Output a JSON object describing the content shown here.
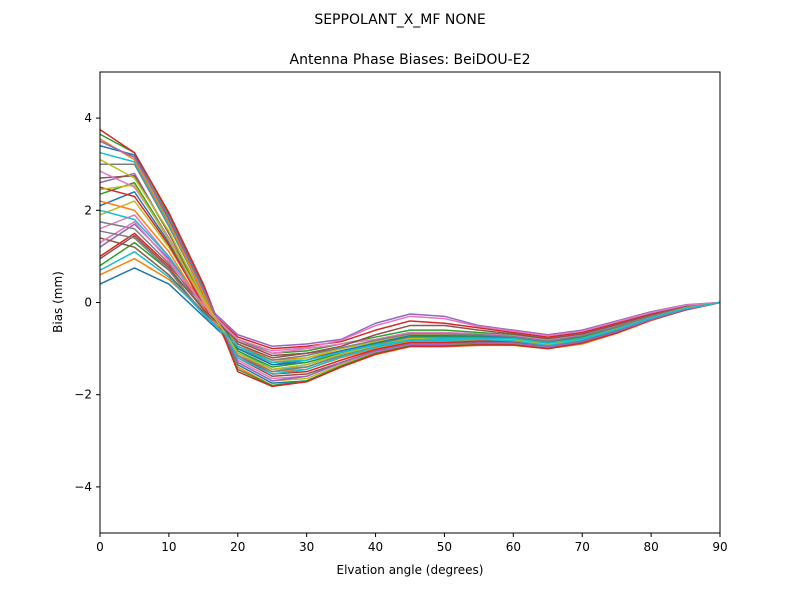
{
  "figure": {
    "suptitle": "SEPPOLANT_X_MF  NONE"
  },
  "chart_data": {
    "type": "line",
    "title": "Antenna Phase Biases: BeiDOU-E2",
    "xlabel": "Elvation angle (degrees)",
    "ylabel": "Bias (mm)",
    "xlim": [
      0,
      90
    ],
    "ylim": [
      -5,
      5
    ],
    "xticks": [
      0,
      10,
      20,
      30,
      40,
      50,
      60,
      70,
      80,
      90
    ],
    "yticks": [
      -4,
      -2,
      0,
      2,
      4
    ],
    "ytick_labels": [
      "−4",
      "−2",
      "0",
      "2",
      "4"
    ],
    "grid": false,
    "legend": "none",
    "x": [
      0,
      5,
      10,
      15,
      20,
      25,
      30,
      35,
      40,
      45,
      50,
      55,
      60,
      65,
      70,
      75,
      80,
      85,
      90
    ],
    "series_colors": [
      "#1f77b4",
      "#ff7f0e",
      "#2ca02c",
      "#d62728",
      "#9467bd",
      "#8c564b",
      "#e377c2",
      "#7f7f7f",
      "#bcbd22",
      "#17becf"
    ],
    "series": [
      {
        "values": [
          0.4,
          0.75,
          0.4,
          -0.3,
          -1.0,
          -1.35,
          -1.3,
          -1.1,
          -0.95,
          -0.85,
          -0.8,
          -0.8,
          -0.8,
          -0.9,
          -0.8,
          -0.6,
          -0.35,
          -0.15,
          0.0
        ]
      },
      {
        "values": [
          0.6,
          0.95,
          0.5,
          -0.2,
          -0.9,
          -1.25,
          -1.2,
          -1.05,
          -0.9,
          -0.8,
          -0.75,
          -0.75,
          -0.75,
          -0.85,
          -0.75,
          -0.55,
          -0.3,
          -0.1,
          0.0
        ]
      },
      {
        "values": [
          0.8,
          1.3,
          0.7,
          -0.1,
          -0.8,
          -1.1,
          -1.05,
          -0.9,
          -0.75,
          -0.6,
          -0.6,
          -0.65,
          -0.7,
          -0.8,
          -0.7,
          -0.5,
          -0.28,
          -0.1,
          0.0
        ]
      },
      {
        "values": [
          1.0,
          1.5,
          0.8,
          -0.05,
          -0.75,
          -1.0,
          -0.95,
          -0.85,
          -0.6,
          -0.4,
          -0.45,
          -0.55,
          -0.65,
          -0.75,
          -0.65,
          -0.45,
          -0.25,
          -0.08,
          0.0
        ]
      },
      {
        "values": [
          1.2,
          1.7,
          0.95,
          0.0,
          -0.7,
          -0.95,
          -0.9,
          -0.8,
          -0.45,
          -0.25,
          -0.3,
          -0.5,
          -0.6,
          -0.7,
          -0.6,
          -0.4,
          -0.2,
          -0.05,
          0.0
        ]
      },
      {
        "values": [
          1.4,
          1.2,
          0.6,
          -0.2,
          -0.9,
          -1.2,
          -1.1,
          -1.0,
          -0.85,
          -0.7,
          -0.7,
          -0.7,
          -0.75,
          -0.85,
          -0.72,
          -0.52,
          -0.3,
          -0.12,
          0.0
        ]
      },
      {
        "values": [
          1.6,
          1.9,
          1.0,
          -0.05,
          -0.85,
          -1.1,
          -1.0,
          -0.9,
          -0.8,
          -0.65,
          -0.65,
          -0.68,
          -0.72,
          -0.82,
          -0.7,
          -0.5,
          -0.28,
          -0.1,
          0.0
        ]
      },
      {
        "values": [
          1.75,
          1.6,
          0.85,
          -0.15,
          -1.0,
          -1.3,
          -1.25,
          -1.05,
          -0.9,
          -0.78,
          -0.78,
          -0.78,
          -0.78,
          -0.88,
          -0.76,
          -0.55,
          -0.32,
          -0.12,
          0.0
        ]
      },
      {
        "values": [
          1.9,
          2.2,
          1.2,
          0.0,
          -0.95,
          -1.3,
          -1.2,
          -1.0,
          -0.85,
          -0.7,
          -0.7,
          -0.72,
          -0.75,
          -0.85,
          -0.74,
          -0.54,
          -0.3,
          -0.1,
          0.0
        ]
      },
      {
        "values": [
          2.0,
          1.8,
          1.0,
          -0.1,
          -1.05,
          -1.45,
          -1.4,
          -1.15,
          -0.95,
          -0.82,
          -0.82,
          -0.8,
          -0.8,
          -0.9,
          -0.78,
          -0.57,
          -0.33,
          -0.13,
          0.0
        ]
      },
      {
        "values": [
          2.1,
          2.4,
          1.3,
          0.05,
          -1.0,
          -1.35,
          -1.25,
          -1.05,
          -0.88,
          -0.72,
          -0.72,
          -0.73,
          -0.76,
          -0.86,
          -0.75,
          -0.55,
          -0.31,
          -0.11,
          0.0
        ]
      },
      {
        "values": [
          2.2,
          2.0,
          1.1,
          -0.1,
          -1.1,
          -1.5,
          -1.45,
          -1.2,
          -1.0,
          -0.85,
          -0.85,
          -0.82,
          -0.82,
          -0.92,
          -0.8,
          -0.58,
          -0.34,
          -0.14,
          0.0
        ]
      },
      {
        "values": [
          2.35,
          2.6,
          1.4,
          0.1,
          -1.05,
          -1.4,
          -1.3,
          -1.1,
          -0.9,
          -0.75,
          -0.75,
          -0.75,
          -0.78,
          -0.88,
          -0.76,
          -0.56,
          -0.32,
          -0.12,
          0.0
        ]
      },
      {
        "values": [
          2.5,
          2.3,
          1.25,
          -0.05,
          -1.15,
          -1.55,
          -1.5,
          -1.25,
          -1.02,
          -0.87,
          -0.87,
          -0.84,
          -0.84,
          -0.94,
          -0.82,
          -0.6,
          -0.35,
          -0.14,
          0.0
        ]
      },
      {
        "values": [
          2.6,
          2.8,
          1.5,
          0.15,
          -1.1,
          -1.45,
          -1.35,
          -1.12,
          -0.92,
          -0.77,
          -0.77,
          -0.77,
          -0.8,
          -0.9,
          -0.78,
          -0.57,
          -0.33,
          -0.12,
          0.0
        ]
      },
      {
        "values": [
          2.7,
          2.75,
          1.5,
          0.1,
          -1.2,
          -1.6,
          -1.55,
          -1.3,
          -1.05,
          -0.9,
          -0.9,
          -0.86,
          -0.86,
          -0.96,
          -0.84,
          -0.62,
          -0.36,
          -0.15,
          0.0
        ]
      },
      {
        "values": [
          2.85,
          2.5,
          1.4,
          0.0,
          -1.25,
          -1.65,
          -1.6,
          -1.32,
          -1.08,
          -0.92,
          -0.92,
          -0.88,
          -0.88,
          -0.98,
          -0.86,
          -0.63,
          -0.37,
          -0.15,
          0.0
        ]
      },
      {
        "values": [
          3.0,
          3.0,
          1.65,
          0.2,
          -1.15,
          -1.5,
          -1.4,
          -1.15,
          -0.95,
          -0.8,
          -0.8,
          -0.79,
          -0.82,
          -0.92,
          -0.8,
          -0.58,
          -0.34,
          -0.13,
          0.0
        ]
      },
      {
        "values": [
          3.1,
          2.7,
          1.55,
          0.1,
          -1.3,
          -1.7,
          -1.65,
          -1.35,
          -1.1,
          -0.94,
          -0.94,
          -0.9,
          -0.9,
          -1.0,
          -0.88,
          -0.65,
          -0.38,
          -0.16,
          0.0
        ]
      },
      {
        "values": [
          3.25,
          3.05,
          1.7,
          0.25,
          -1.2,
          -1.55,
          -1.45,
          -1.18,
          -0.97,
          -0.82,
          -0.82,
          -0.8,
          -0.83,
          -0.93,
          -0.81,
          -0.59,
          -0.35,
          -0.13,
          0.0
        ]
      },
      {
        "values": [
          3.4,
          3.2,
          1.8,
          0.3,
          -1.35,
          -1.75,
          -1.7,
          -1.38,
          -1.12,
          -0.95,
          -0.95,
          -0.92,
          -0.92,
          -1.0,
          -0.88,
          -0.66,
          -0.38,
          -0.16,
          0.0
        ]
      },
      {
        "values": [
          3.55,
          3.1,
          1.75,
          0.2,
          -1.4,
          -1.8,
          -1.72,
          -1.4,
          -1.13,
          -0.96,
          -0.96,
          -0.93,
          -0.93,
          -1.0,
          -0.9,
          -0.67,
          -0.39,
          -0.16,
          0.0
        ]
      },
      {
        "values": [
          3.65,
          3.25,
          1.9,
          0.35,
          -1.45,
          -1.8,
          -1.7,
          -1.38,
          -1.1,
          -0.94,
          -0.94,
          -0.91,
          -0.92,
          -1.0,
          -0.88,
          -0.66,
          -0.38,
          -0.16,
          0.0
        ]
      },
      {
        "values": [
          3.75,
          3.25,
          1.95,
          0.4,
          -1.5,
          -1.82,
          -1.72,
          -1.4,
          -1.12,
          -0.95,
          -0.95,
          -0.92,
          -0.92,
          -1.0,
          -0.88,
          -0.66,
          -0.38,
          -0.16,
          0.0
        ]
      },
      {
        "values": [
          3.5,
          3.15,
          1.85,
          0.3,
          -1.3,
          -1.7,
          -1.6,
          -1.3,
          -1.05,
          -0.9,
          -0.9,
          -0.88,
          -0.88,
          -0.96,
          -0.85,
          -0.63,
          -0.37,
          -0.15,
          0.0
        ]
      },
      {
        "values": [
          0.95,
          1.45,
          0.75,
          -0.15,
          -0.85,
          -1.15,
          -1.1,
          -0.95,
          -0.7,
          -0.5,
          -0.5,
          -0.6,
          -0.68,
          -0.78,
          -0.68,
          -0.48,
          -0.27,
          -0.09,
          0.0
        ]
      },
      {
        "values": [
          1.3,
          1.75,
          0.9,
          -0.05,
          -0.8,
          -1.05,
          -0.98,
          -0.82,
          -0.5,
          -0.3,
          -0.35,
          -0.52,
          -0.62,
          -0.72,
          -0.62,
          -0.42,
          -0.22,
          -0.06,
          0.0
        ]
      },
      {
        "values": [
          1.55,
          1.4,
          0.7,
          -0.25,
          -0.95,
          -1.25,
          -1.15,
          -0.98,
          -0.82,
          -0.68,
          -0.68,
          -0.7,
          -0.74,
          -0.84,
          -0.72,
          -0.52,
          -0.3,
          -0.11,
          0.0
        ]
      },
      {
        "values": [
          2.45,
          2.55,
          1.35,
          0.05,
          -1.1,
          -1.45,
          -1.35,
          -1.12,
          -0.93,
          -0.78,
          -0.78,
          -0.78,
          -0.8,
          -0.9,
          -0.78,
          -0.57,
          -0.33,
          -0.12,
          0.0
        ]
      },
      {
        "values": [
          0.7,
          1.1,
          0.55,
          -0.25,
          -0.95,
          -1.3,
          -1.25,
          -1.08,
          -0.92,
          -0.82,
          -0.78,
          -0.78,
          -0.78,
          -0.88,
          -0.78,
          -0.58,
          -0.33,
          -0.13,
          0.0
        ]
      }
    ]
  }
}
